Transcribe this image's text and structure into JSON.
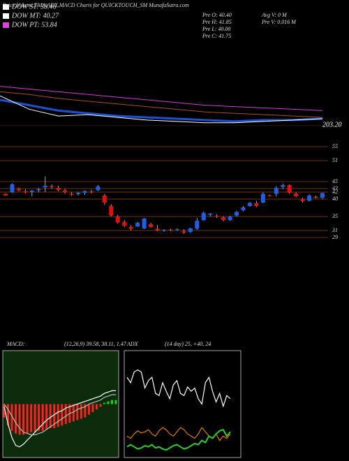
{
  "chart_data": [
    {
      "type": "candlestick",
      "title": "Price,Volume,EMA,ADX,MACD Charts for QUICKTOUCH_SM MunafaSutra.com",
      "legend": [
        {
          "text": "DOW ST: 38.46",
          "color": "#ffffff"
        },
        {
          "text": "DOW MT: 40.27",
          "color": "#ffffff"
        },
        {
          "text": "DOW PT: 53.84",
          "color": "#e040e0"
        }
      ],
      "stats": [
        "Pre  O: 40.40",
        "Pre  H: 41.85",
        "Pre  L: 40.00",
        "Pre  C: 41.75",
        "Avg V: 0  M",
        "Pre  V: 0.016  M"
      ],
      "up_color": "#1e5ee8",
      "down_color": "#e01010",
      "open": [
        41.5,
        42.0,
        43.0,
        42.3,
        42.0,
        42.5,
        43.4,
        43.6,
        43.2,
        42.5,
        41.5,
        41.4,
        41.8,
        42.2,
        42.5,
        41.0,
        38.0,
        35.0,
        33.5,
        32.0,
        32.2,
        31.6,
        32.8,
        31.5,
        31.0,
        31.2,
        31.2,
        30.8,
        30.6,
        31.5,
        34.0,
        35.5,
        35.2,
        34.8,
        34.0,
        35.3,
        36.8,
        38.0,
        38.8,
        39.0,
        41.0,
        41.5,
        43.5,
        44.0,
        41.6,
        40.0,
        39.5,
        40.6,
        40.4
      ],
      "high": [
        41.7,
        44.5,
        43.3,
        42.8,
        42.6,
        43.2,
        46.5,
        44.2,
        43.8,
        42.9,
        42.0,
        42.0,
        42.5,
        42.7,
        44.0,
        41.5,
        38.5,
        35.5,
        34.0,
        32.5,
        33.5,
        34.6,
        33.2,
        32.6,
        31.4,
        31.5,
        31.6,
        31.4,
        31.8,
        34.6,
        36.4,
        36.0,
        35.6,
        35.1,
        35.2,
        36.6,
        38.0,
        39.2,
        39.5,
        41.9,
        41.3,
        43.7,
        44.4,
        44.2,
        42.0,
        40.3,
        41.4,
        41.0,
        41.85
      ],
      "low": [
        40.9,
        41.8,
        42.2,
        41.6,
        40.8,
        42.0,
        42.0,
        43.0,
        42.2,
        41.5,
        40.9,
        41.0,
        41.2,
        41.6,
        42.3,
        38.3,
        35.0,
        33.0,
        32.0,
        31.0,
        32.0,
        31.4,
        31.8,
        30.8,
        30.6,
        30.8,
        30.9,
        30.0,
        30.3,
        31.2,
        33.8,
        35.0,
        34.6,
        33.6,
        33.8,
        35.0,
        36.5,
        37.8,
        37.7,
        38.8,
        40.7,
        40.8,
        42.8,
        41.5,
        40.5,
        39.0,
        39.3,
        40.2,
        40.0
      ],
      "close": [
        41.0,
        44.2,
        42.5,
        41.9,
        42.4,
        42.8,
        43.8,
        43.4,
        42.6,
        42.0,
        41.2,
        41.8,
        42.3,
        42.0,
        43.6,
        39.0,
        35.3,
        33.3,
        32.3,
        31.5,
        33.2,
        34.4,
        32.0,
        31.0,
        31.2,
        31.0,
        31.4,
        30.4,
        31.6,
        33.8,
        36.0,
        35.8,
        35.1,
        34.0,
        35.0,
        36.3,
        37.6,
        38.9,
        38.0,
        41.5,
        40.8,
        43.2,
        44.0,
        41.8,
        40.8,
        39.4,
        41.0,
        40.5,
        41.75
      ],
      "ylim": [
        24,
        58
      ],
      "yticks": [
        55,
        51,
        45,
        43,
        42,
        40,
        35,
        31,
        29
      ],
      "grid_color": "#8b4a1c"
    },
    {
      "type": "line",
      "x": [
        0,
        1,
        2,
        3,
        4,
        5,
        6,
        7,
        8,
        9,
        10,
        11
      ],
      "series": [
        {
          "color": "#d040d0",
          "values": [
            232,
            230,
            228,
            226,
            224,
            222,
            220,
            218,
            217,
            216,
            215,
            214
          ]
        },
        {
          "color": "#a0522d",
          "values": [
            228,
            226,
            223,
            221,
            219,
            217,
            215,
            213,
            212,
            211,
            210,
            209
          ]
        },
        {
          "color": "#1e50d0",
          "values": [
            222,
            218,
            214,
            212,
            210,
            209,
            208,
            207,
            206,
            207,
            207,
            208
          ]
        },
        {
          "color": "#ffffff",
          "values": [
            225,
            215,
            210,
            211,
            209,
            207,
            206,
            205,
            205,
            206,
            207,
            208
          ]
        }
      ],
      "ylim": [
        195,
        265
      ],
      "yticks": [
        {
          "value": 203.2,
          "label": "203.20"
        }
      ]
    },
    {
      "type": "macd",
      "label": "MACD:",
      "title": "(12,26,9) 39.58, 38.11, 1.47",
      "histogram": [
        -10,
        -16,
        -20,
        -22,
        -23,
        -23,
        -22,
        -21,
        -21,
        -20,
        -20,
        -19,
        -18,
        -18,
        -17,
        -16,
        -15,
        -14,
        -13,
        -12,
        -11,
        -10,
        -8,
        -6,
        -4,
        -2,
        1,
        2,
        3,
        3
      ],
      "series": [
        {
          "color": "#ffffff",
          "values": [
            -2,
            -15,
            -25,
            -31,
            -32,
            -30,
            -27,
            -24,
            -21,
            -18,
            -15,
            -12,
            -10,
            -8,
            -6,
            -5,
            -3,
            -2,
            -1,
            0,
            1,
            2,
            3,
            4,
            5,
            6,
            8,
            9,
            10,
            10
          ]
        },
        {
          "color": "#bbbbbb",
          "values": [
            0,
            -4,
            -9,
            -14,
            -18,
            -21,
            -22,
            -23,
            -23,
            -22,
            -21,
            -19,
            -17,
            -15,
            -13,
            -11,
            -9,
            -7,
            -6,
            -4,
            -3,
            -2,
            0,
            1,
            2,
            3,
            5,
            6,
            7,
            7
          ]
        }
      ],
      "neg_color": "#ff2020",
      "pos_color": "#20d020",
      "ylim": [
        -40,
        40
      ]
    },
    {
      "type": "adx",
      "label": "ADX",
      "title": "(14 day) 25, +40, 24",
      "series": [
        {
          "color": "#ffffff",
          "values": [
            75,
            70,
            80,
            82,
            80,
            65,
            72,
            75,
            60,
            58,
            70,
            62,
            55,
            68,
            72,
            60,
            58,
            66,
            62,
            65,
            55,
            50,
            70,
            75,
            62,
            52,
            60,
            48,
            58,
            55
          ]
        },
        {
          "color": "#e07b00",
          "values": [
            20,
            18,
            22,
            25,
            23,
            24,
            26,
            22,
            20,
            25,
            28,
            26,
            22,
            20,
            24,
            28,
            26,
            22,
            20,
            18,
            22,
            28,
            24,
            20,
            18,
            22,
            16,
            20,
            18,
            22
          ]
        },
        {
          "color": "#2ecc2e",
          "values": [
            10,
            12,
            10,
            8,
            9,
            11,
            10,
            12,
            9,
            10,
            8,
            7,
            9,
            11,
            12,
            10,
            8,
            9,
            11,
            13,
            12,
            16,
            14,
            20,
            18,
            22,
            25,
            26,
            20,
            24
          ]
        }
      ],
      "ylim": [
        0,
        100
      ]
    }
  ]
}
